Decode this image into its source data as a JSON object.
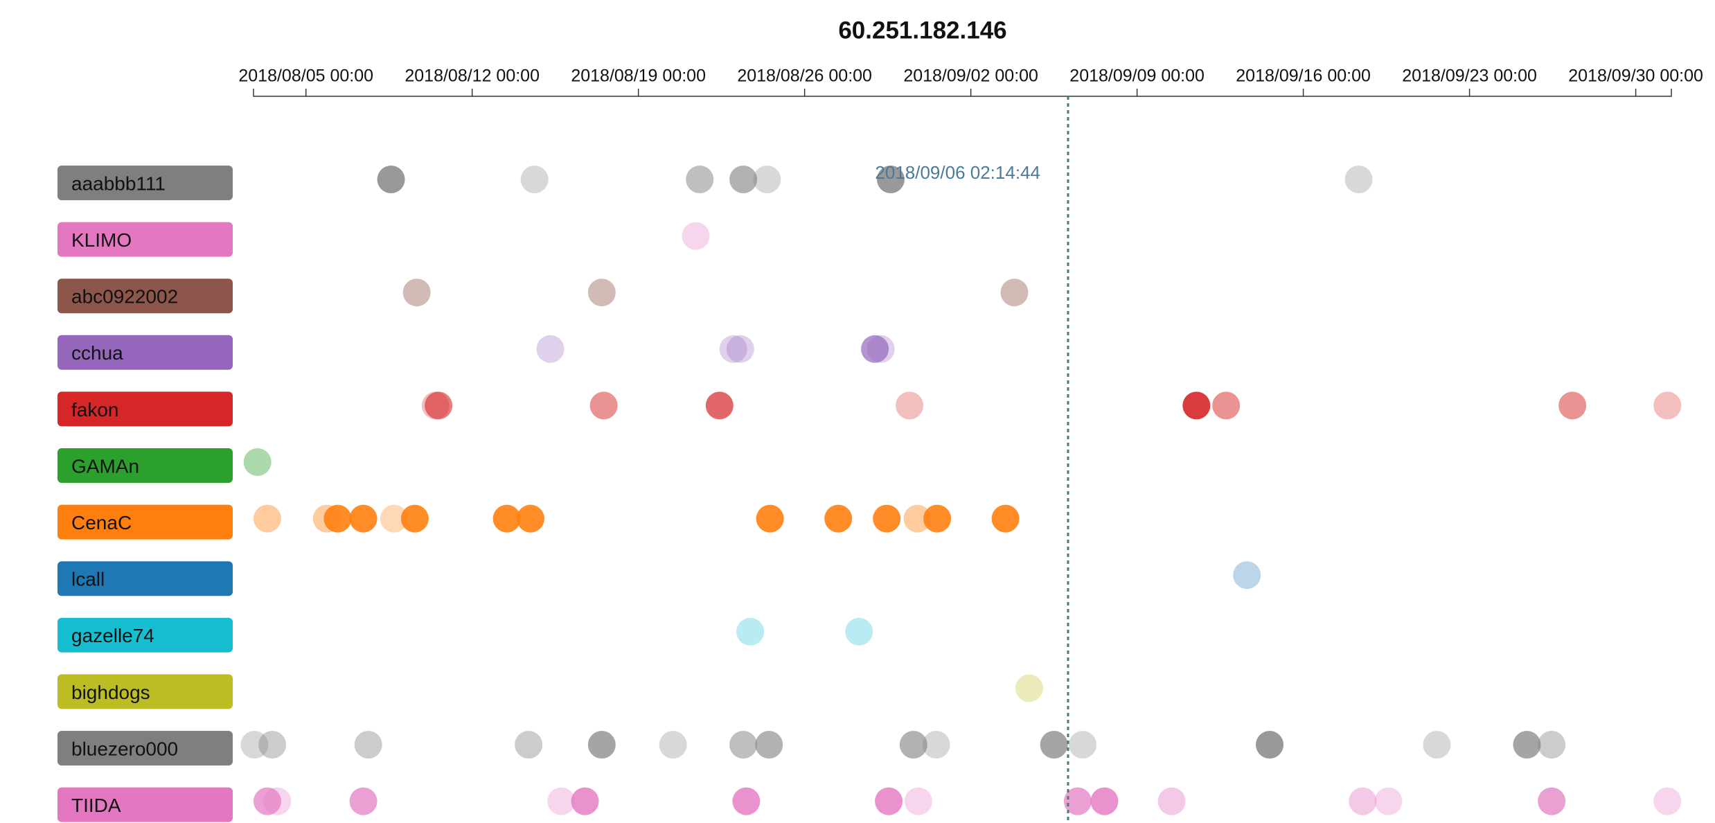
{
  "chart_data": {
    "type": "timeline",
    "title": "60.251.182.146",
    "xlim": [
      "2018/08/02 19:00",
      "2018/10/01 12:00"
    ],
    "xticks": [
      "2018/08/05 00:00",
      "2018/08/12 00:00",
      "2018/08/19 00:00",
      "2018/08/26 00:00",
      "2018/09/02 00:00",
      "2018/09/09 00:00",
      "2018/09/16 00:00",
      "2018/09/23 00:00",
      "2018/09/30 00:00"
    ],
    "marker": {
      "x": "2018/09/06 02:14:44",
      "color": "#3f7f80"
    },
    "series": [
      {
        "name": "aaabbb111",
        "color": "#7f7f7f",
        "x": [
          "2018/08/08 14:00",
          "2018/08/14 15:00",
          "2018/08/21 14:00",
          "2018/08/23 10:00",
          "2018/08/24 10:00",
          "2018/08/29 15:00",
          "2018/09/18 08:00"
        ],
        "alpha": [
          0.8,
          0.3,
          0.5,
          0.6,
          0.3,
          0.8,
          0.3
        ]
      },
      {
        "name": "KLIMO",
        "color": "#e377c2",
        "x": [
          "2018/08/21 10:00"
        ],
        "alpha": [
          0.3
        ]
      },
      {
        "name": "abc0922002",
        "color": "#8c564b",
        "x": [
          "2018/08/09 16:00",
          "2018/08/17 11:00",
          "2018/09/03 20:00"
        ],
        "alpha": [
          0.4,
          0.4,
          0.4
        ]
      },
      {
        "name": "cchua",
        "color": "#9467bd",
        "x": [
          "2018/08/15 07:00",
          "2018/08/23 00:00",
          "2018/08/23 07:00",
          "2018/08/28 23:00",
          "2018/08/29 05:00"
        ],
        "alpha": [
          0.3,
          0.3,
          0.3,
          0.7,
          0.3
        ]
      },
      {
        "name": "fakon",
        "color": "#d62728",
        "x": [
          "2018/08/10 11:00",
          "2018/08/10 14:00",
          "2018/08/17 13:00",
          "2018/08/22 10:00",
          "2018/08/30 10:00",
          "2018/09/11 12:00",
          "2018/09/12 18:00",
          "2018/09/27 08:00",
          "2018/10/01 08:00"
        ],
        "alpha": [
          0.3,
          0.6,
          0.5,
          0.7,
          0.3,
          0.9,
          0.5,
          0.5,
          0.3
        ]
      },
      {
        "name": "GAMAn",
        "color": "#2ca02c",
        "x": [
          "2018/08/02 23:00"
        ],
        "alpha": [
          0.4
        ]
      },
      {
        "name": "CenaC",
        "color": "#ff7f0e",
        "x": [
          "2018/08/03 09:00",
          "2018/08/05 21:00",
          "2018/08/06 08:00",
          "2018/08/07 10:00",
          "2018/08/08 17:00",
          "2018/08/09 14:00",
          "2018/08/13 11:00",
          "2018/08/14 11:00",
          "2018/08/24 13:00",
          "2018/08/27 10:00",
          "2018/08/29 11:00",
          "2018/08/30 18:00",
          "2018/08/31 14:00",
          "2018/09/03 11:00"
        ],
        "alpha": [
          0.4,
          0.4,
          0.9,
          0.9,
          0.3,
          0.9,
          0.9,
          0.9,
          0.9,
          0.9,
          0.9,
          0.4,
          0.9,
          0.9
        ]
      },
      {
        "name": "lcall",
        "color": "#1f77b4",
        "x": [
          "2018/09/13 15:00"
        ],
        "alpha": [
          0.3
        ]
      },
      {
        "name": "gazelle74",
        "color": "#17becf",
        "x": [
          "2018/08/23 17:00",
          "2018/08/28 07:00"
        ],
        "alpha": [
          0.3,
          0.3
        ]
      },
      {
        "name": "bighdogs",
        "color": "#bcbd22",
        "x": [
          "2018/09/04 11:00"
        ],
        "alpha": [
          0.3
        ]
      },
      {
        "name": "bluezero000",
        "color": "#7f7f7f",
        "x": [
          "2018/08/02 20:00",
          "2018/08/03 14:00",
          "2018/08/07 15:00",
          "2018/08/14 09:00",
          "2018/08/17 11:00",
          "2018/08/20 11:00",
          "2018/08/23 10:00",
          "2018/08/24 12:00",
          "2018/08/30 14:00",
          "2018/08/31 13:00",
          "2018/09/05 12:00",
          "2018/09/06 17:00",
          "2018/09/14 14:00",
          "2018/09/21 15:00",
          "2018/09/25 10:00",
          "2018/09/26 11:00"
        ],
        "alpha": [
          0.3,
          0.4,
          0.4,
          0.4,
          0.7,
          0.3,
          0.5,
          0.6,
          0.6,
          0.3,
          0.7,
          0.3,
          0.8,
          0.3,
          0.7,
          0.4
        ]
      },
      {
        "name": "TIIDA",
        "color": "#e377c2",
        "x": [
          "2018/08/03 09:00",
          "2018/08/03 19:00",
          "2018/08/07 10:00",
          "2018/08/15 18:00",
          "2018/08/16 18:00",
          "2018/08/23 13:00",
          "2018/08/29 13:00",
          "2018/08/30 19:00",
          "2018/09/06 12:00",
          "2018/09/07 15:00",
          "2018/09/10 11:00",
          "2018/09/18 12:00",
          "2018/09/19 14:00",
          "2018/09/26 11:00",
          "2018/10/01 08:00"
        ],
        "alpha": [
          0.7,
          0.3,
          0.7,
          0.3,
          0.8,
          0.8,
          0.8,
          0.3,
          0.7,
          0.8,
          0.4,
          0.4,
          0.3,
          0.7,
          0.3
        ]
      }
    ]
  }
}
